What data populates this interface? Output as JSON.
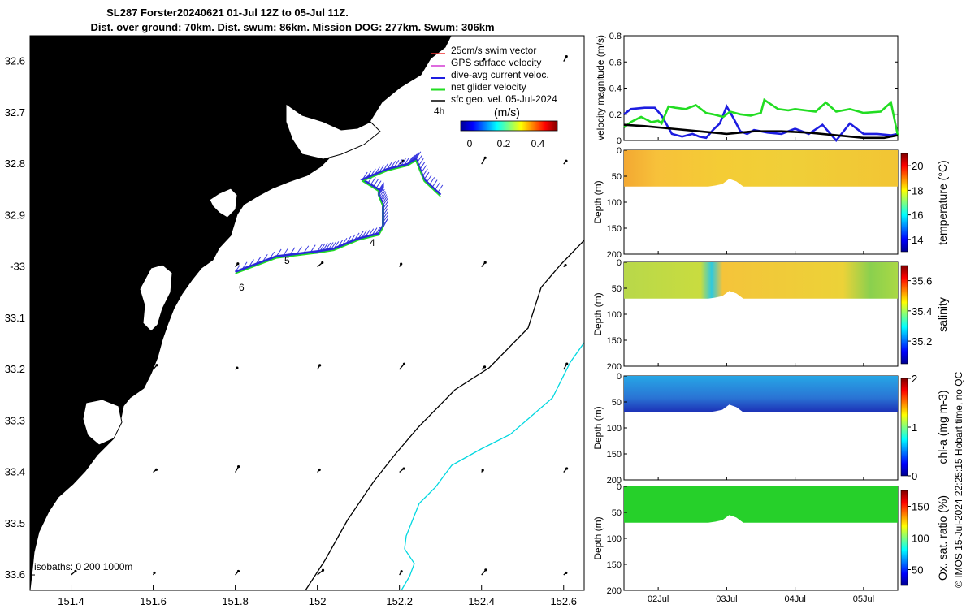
{
  "title_line1": "SL287 Forster20240621 01-Jul 12Z to 05-Jul 11Z.",
  "title_line2": "Dist. over ground: 70km. Dist. swum: 86km. Mission DOG: 277km. Swum: 306km",
  "footer_note": "© IMOS 15-Jul-2024 22:25:15 Hobart time, no QC",
  "colors": {
    "land": "#fcca9b",
    "track": "#2a2ad8",
    "net_velocity": "#22dd22",
    "geo": "#000000",
    "isobath": "#00d8e0"
  },
  "chart_data": [
    {
      "type": "map",
      "lon_ticks": [
        "151.4",
        "151.6",
        "151.8",
        "152",
        "152.2",
        "152.4",
        "152.6"
      ],
      "lat_ticks": [
        "32.6",
        "32.7",
        "32.8",
        "32.9",
        "-33",
        "33.1",
        "33.2",
        "33.3",
        "33.4",
        "33.5",
        "33.6"
      ],
      "lon_range": [
        151.3,
        152.65
      ],
      "lat_range": [
        32.55,
        33.63
      ],
      "track_labels": [
        "4h",
        "4",
        "5",
        "6"
      ],
      "legend": [
        "25cm/s swim vector",
        "GPS surface velocity",
        "dive-avg current veloc.",
        "net glider velocity",
        "sfc geo. vel. 05-Jul-2024"
      ],
      "colorbar_title": "(m/s)",
      "colorbar_ticks": [
        "0",
        "0.2",
        "0.4"
      ],
      "isobaths_label": "isobaths: 0   200  1000m",
      "track": [
        [
          151.8,
          33.01
        ],
        [
          151.9,
          32.98
        ],
        [
          152.0,
          32.97
        ],
        [
          152.04,
          32.965
        ],
        [
          152.1,
          32.945
        ],
        [
          152.15,
          32.935
        ],
        [
          152.16,
          32.92
        ],
        [
          152.16,
          32.88
        ],
        [
          152.15,
          32.86
        ],
        [
          152.15,
          32.85
        ],
        [
          152.11,
          32.83
        ],
        [
          152.17,
          32.81
        ],
        [
          152.22,
          32.8
        ],
        [
          152.24,
          32.79
        ],
        [
          152.26,
          32.83
        ],
        [
          152.3,
          32.86
        ]
      ]
    },
    {
      "type": "line",
      "ylabel": "velocity magnitude (m/s)",
      "ylim": [
        0,
        0.8
      ],
      "yticks": [
        "0",
        "0.2",
        "0.4",
        "0.6",
        "0.8"
      ],
      "xlim": [
        0.5,
        4.5
      ],
      "series": [
        {
          "name": "dive-avg current veloc.",
          "color": "#1d1de0",
          "x": [
            0.5,
            0.6,
            0.8,
            0.95,
            1.05,
            1.2,
            1.35,
            1.5,
            1.6,
            1.7,
            1.8,
            1.9,
            2.0,
            2.1,
            2.2,
            2.3,
            2.4,
            2.6,
            2.8,
            3.0,
            3.2,
            3.4,
            3.6,
            3.8,
            4.0,
            4.2,
            4.4,
            4.5
          ],
          "values": [
            0.2,
            0.24,
            0.25,
            0.25,
            0.19,
            0.05,
            0.03,
            0.05,
            0.03,
            0.02,
            0.08,
            0.13,
            0.26,
            0.17,
            0.07,
            0.05,
            0.08,
            0.06,
            0.05,
            0.09,
            0.05,
            0.12,
            0.0,
            0.13,
            0.05,
            0.05,
            0.04,
            0.05
          ]
        },
        {
          "name": "net glider velocity",
          "color": "#22dd22",
          "x": [
            0.5,
            0.6,
            0.75,
            0.9,
            1.0,
            1.05,
            1.15,
            1.25,
            1.4,
            1.55,
            1.7,
            1.8,
            1.95,
            2.05,
            2.2,
            2.35,
            2.5,
            2.55,
            2.75,
            2.9,
            3.0,
            3.15,
            3.3,
            3.45,
            3.6,
            3.8,
            4.0,
            4.25,
            4.4,
            4.5
          ],
          "values": [
            0.1,
            0.14,
            0.18,
            0.14,
            0.15,
            0.13,
            0.26,
            0.25,
            0.24,
            0.27,
            0.21,
            0.2,
            0.18,
            0.22,
            0.2,
            0.19,
            0.21,
            0.31,
            0.24,
            0.23,
            0.24,
            0.23,
            0.22,
            0.29,
            0.22,
            0.24,
            0.21,
            0.22,
            0.29,
            0.04
          ]
        },
        {
          "name": "sfc geo. vel.",
          "color": "#000000",
          "x": [
            0.5,
            0.8,
            1.2,
            1.6,
            2.0,
            2.4,
            2.8,
            3.2,
            3.6,
            4.0,
            4.3,
            4.5
          ],
          "values": [
            0.12,
            0.11,
            0.09,
            0.07,
            0.05,
            0.07,
            0.07,
            0.06,
            0.04,
            0.02,
            0.02,
            0.04
          ]
        }
      ]
    },
    {
      "type": "heatmap",
      "ylabel": "Depth (m)",
      "cbar_label": "temperature (°C)",
      "cbar_ticks": [
        "14",
        "16",
        "18",
        "20"
      ],
      "clim": [
        13,
        21
      ],
      "yticks": [
        "0",
        "50",
        "100",
        "150",
        "200"
      ],
      "ylim": [
        0,
        200
      ],
      "profile_depth_m": [
        70,
        70,
        70,
        70,
        70,
        70,
        70,
        70,
        70,
        70,
        70,
        70,
        70,
        68,
        65,
        55,
        60,
        70,
        70,
        70,
        70,
        70,
        70,
        70,
        70,
        70,
        70,
        70,
        70,
        70,
        70,
        70,
        70,
        70,
        70,
        70,
        70,
        70,
        70,
        70
      ]
    },
    {
      "type": "heatmap",
      "ylabel": "Depth (m)",
      "cbar_label": "salinity",
      "cbar_ticks": [
        "35.2",
        "35.4",
        "35.6"
      ],
      "clim": [
        35.05,
        35.7
      ],
      "yticks": [
        "0",
        "50",
        "100",
        "150",
        "200"
      ],
      "ylim": [
        0,
        200
      ]
    },
    {
      "type": "heatmap",
      "ylabel": "Depth (m)",
      "cbar_label": "chl-a (mg m-3)",
      "cbar_ticks": [
        "0",
        "1",
        "2"
      ],
      "clim": [
        0,
        2
      ],
      "yticks": [
        "0",
        "50",
        "100",
        "150",
        "200"
      ],
      "ylim": [
        0,
        200
      ]
    },
    {
      "type": "heatmap",
      "ylabel": "Depth (m)",
      "cbar_label": "Ox. sat. ratio (%)",
      "cbar_ticks": [
        "50",
        "100",
        "150"
      ],
      "clim": [
        25,
        175
      ],
      "yticks": [
        "0",
        "50",
        "100",
        "150",
        "200"
      ],
      "ylim": [
        0,
        200
      ],
      "xticks": [
        "02Jul",
        "03Jul",
        "04Jul",
        "05Jul"
      ],
      "xtick_values": [
        1,
        2,
        3,
        4
      ]
    }
  ]
}
